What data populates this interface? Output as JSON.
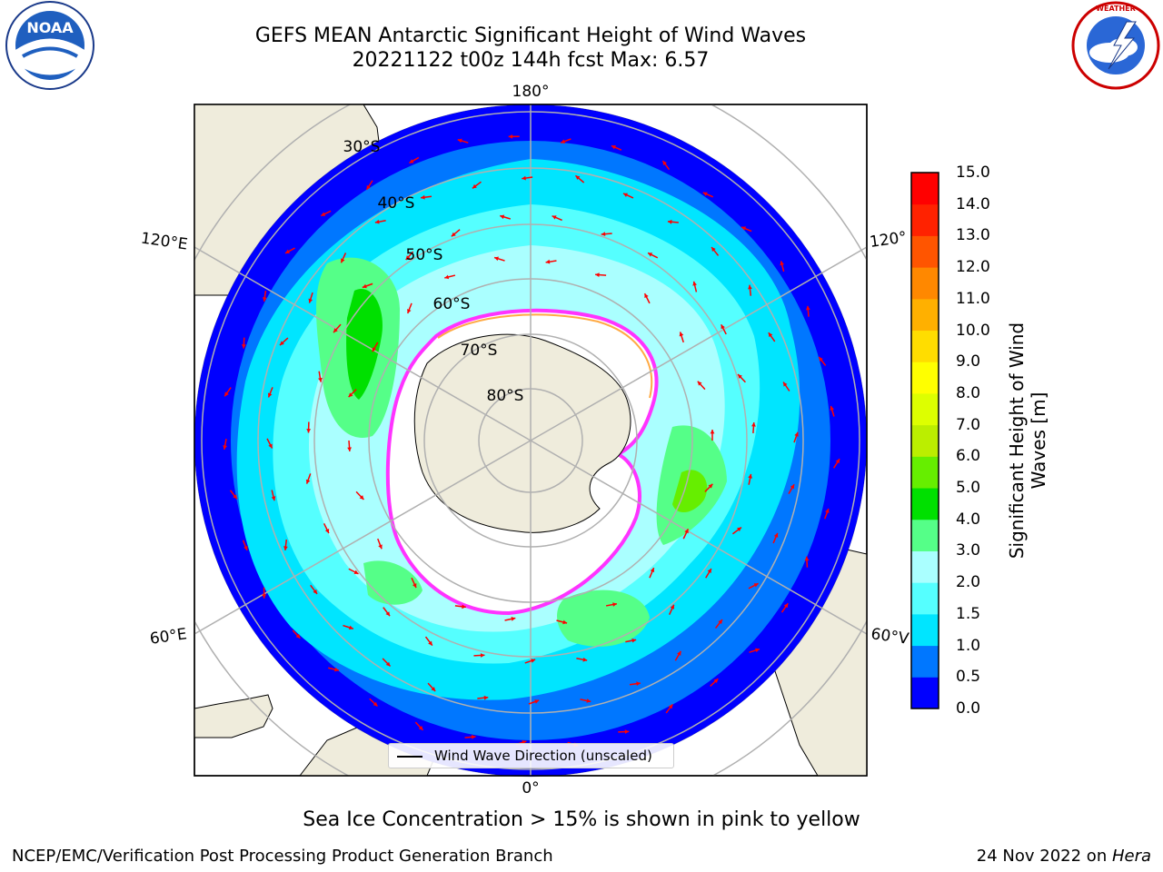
{
  "title": {
    "line1": "GEFS MEAN Antarctic Significant Height of Wind Waves",
    "line2": "20221122 t00z 144h fcst   Max: 6.57"
  },
  "logos": {
    "left": "noaa-logo",
    "right": "nws-logo"
  },
  "map": {
    "projection": "south-polar-stereographic",
    "longitude_labels": {
      "top": "180°",
      "bottom": "0°",
      "left_upper": "120°E",
      "left_lower": "60°E",
      "right_upper": "120°",
      "right_lower": "60°V"
    },
    "latitude_labels": [
      "30°S",
      "40°S",
      "50°S",
      "60°S",
      "70°S",
      "80°S"
    ],
    "legend": "Wind Wave Direction (unscaled)",
    "colors": {
      "land": "#efecdc",
      "ice_shelf": "#ffffff",
      "ice_edge": [
        "#ff33ff",
        "#ffaa44",
        "#ffd24d"
      ],
      "arrows": "#ff0000",
      "gridlines": "#b0b0b0"
    }
  },
  "colorbar": {
    "label_line1": "Significant Height of Wind",
    "label_line2": "Waves [m]",
    "ticks": [
      "15.0",
      "14.0",
      "13.0",
      "12.0",
      "11.0",
      "10.0",
      "9.0",
      "8.0",
      "7.0",
      "6.0",
      "5.0",
      "4.0",
      "3.0",
      "2.0",
      "1.5",
      "1.0",
      "0.5",
      "0.0"
    ],
    "colors_bottom_to_top": [
      "#0000ff",
      "#0077ff",
      "#00e5ff",
      "#55ffff",
      "#aaffff",
      "#55ff88",
      "#00e000",
      "#66ee00",
      "#bbee00",
      "#ddff00",
      "#ffff00",
      "#ffdd00",
      "#ffb000",
      "#ff8800",
      "#ff5500",
      "#ff2200",
      "#ff0000"
    ]
  },
  "subtitle": "Sea Ice Concentration > 15% is shown in pink to yellow",
  "footer": {
    "left": "NCEP/EMC/Verification Post Processing Product Generation Branch",
    "right_prefix": "24 Nov 2022 on ",
    "right_machine": "Hera"
  }
}
